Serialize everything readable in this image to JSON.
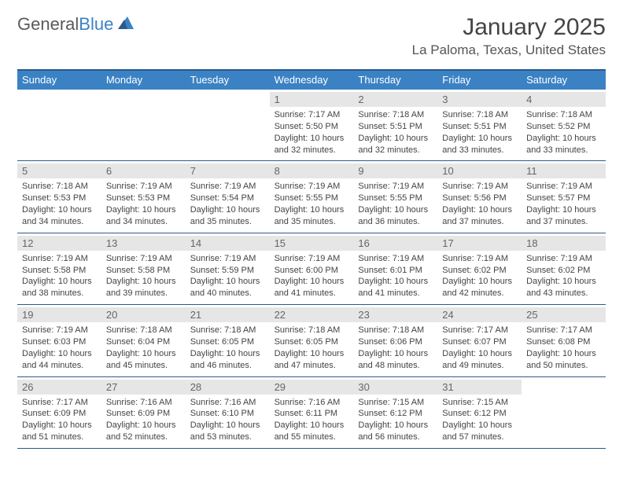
{
  "logo": {
    "text1": "General",
    "text2": "Blue"
  },
  "title": "January 2025",
  "location": "La Paloma, Texas, United States",
  "dayNames": [
    "Sunday",
    "Monday",
    "Tuesday",
    "Wednesday",
    "Thursday",
    "Friday",
    "Saturday"
  ],
  "colors": {
    "headerBg": "#3b82c4",
    "border": "#2c5a8a",
    "dayNumBg": "#e6e6e6",
    "text": "#444444"
  },
  "weeks": [
    [
      {},
      {},
      {},
      {
        "n": "1",
        "sr": "7:17 AM",
        "ss": "5:50 PM",
        "dl": "10 hours and 32 minutes."
      },
      {
        "n": "2",
        "sr": "7:18 AM",
        "ss": "5:51 PM",
        "dl": "10 hours and 32 minutes."
      },
      {
        "n": "3",
        "sr": "7:18 AM",
        "ss": "5:51 PM",
        "dl": "10 hours and 33 minutes."
      },
      {
        "n": "4",
        "sr": "7:18 AM",
        "ss": "5:52 PM",
        "dl": "10 hours and 33 minutes."
      }
    ],
    [
      {
        "n": "5",
        "sr": "7:18 AM",
        "ss": "5:53 PM",
        "dl": "10 hours and 34 minutes."
      },
      {
        "n": "6",
        "sr": "7:19 AM",
        "ss": "5:53 PM",
        "dl": "10 hours and 34 minutes."
      },
      {
        "n": "7",
        "sr": "7:19 AM",
        "ss": "5:54 PM",
        "dl": "10 hours and 35 minutes."
      },
      {
        "n": "8",
        "sr": "7:19 AM",
        "ss": "5:55 PM",
        "dl": "10 hours and 35 minutes."
      },
      {
        "n": "9",
        "sr": "7:19 AM",
        "ss": "5:55 PM",
        "dl": "10 hours and 36 minutes."
      },
      {
        "n": "10",
        "sr": "7:19 AM",
        "ss": "5:56 PM",
        "dl": "10 hours and 37 minutes."
      },
      {
        "n": "11",
        "sr": "7:19 AM",
        "ss": "5:57 PM",
        "dl": "10 hours and 37 minutes."
      }
    ],
    [
      {
        "n": "12",
        "sr": "7:19 AM",
        "ss": "5:58 PM",
        "dl": "10 hours and 38 minutes."
      },
      {
        "n": "13",
        "sr": "7:19 AM",
        "ss": "5:58 PM",
        "dl": "10 hours and 39 minutes."
      },
      {
        "n": "14",
        "sr": "7:19 AM",
        "ss": "5:59 PM",
        "dl": "10 hours and 40 minutes."
      },
      {
        "n": "15",
        "sr": "7:19 AM",
        "ss": "6:00 PM",
        "dl": "10 hours and 41 minutes."
      },
      {
        "n": "16",
        "sr": "7:19 AM",
        "ss": "6:01 PM",
        "dl": "10 hours and 41 minutes."
      },
      {
        "n": "17",
        "sr": "7:19 AM",
        "ss": "6:02 PM",
        "dl": "10 hours and 42 minutes."
      },
      {
        "n": "18",
        "sr": "7:19 AM",
        "ss": "6:02 PM",
        "dl": "10 hours and 43 minutes."
      }
    ],
    [
      {
        "n": "19",
        "sr": "7:19 AM",
        "ss": "6:03 PM",
        "dl": "10 hours and 44 minutes."
      },
      {
        "n": "20",
        "sr": "7:18 AM",
        "ss": "6:04 PM",
        "dl": "10 hours and 45 minutes."
      },
      {
        "n": "21",
        "sr": "7:18 AM",
        "ss": "6:05 PM",
        "dl": "10 hours and 46 minutes."
      },
      {
        "n": "22",
        "sr": "7:18 AM",
        "ss": "6:05 PM",
        "dl": "10 hours and 47 minutes."
      },
      {
        "n": "23",
        "sr": "7:18 AM",
        "ss": "6:06 PM",
        "dl": "10 hours and 48 minutes."
      },
      {
        "n": "24",
        "sr": "7:17 AM",
        "ss": "6:07 PM",
        "dl": "10 hours and 49 minutes."
      },
      {
        "n": "25",
        "sr": "7:17 AM",
        "ss": "6:08 PM",
        "dl": "10 hours and 50 minutes."
      }
    ],
    [
      {
        "n": "26",
        "sr": "7:17 AM",
        "ss": "6:09 PM",
        "dl": "10 hours and 51 minutes."
      },
      {
        "n": "27",
        "sr": "7:16 AM",
        "ss": "6:09 PM",
        "dl": "10 hours and 52 minutes."
      },
      {
        "n": "28",
        "sr": "7:16 AM",
        "ss": "6:10 PM",
        "dl": "10 hours and 53 minutes."
      },
      {
        "n": "29",
        "sr": "7:16 AM",
        "ss": "6:11 PM",
        "dl": "10 hours and 55 minutes."
      },
      {
        "n": "30",
        "sr": "7:15 AM",
        "ss": "6:12 PM",
        "dl": "10 hours and 56 minutes."
      },
      {
        "n": "31",
        "sr": "7:15 AM",
        "ss": "6:12 PM",
        "dl": "10 hours and 57 minutes."
      },
      {}
    ]
  ]
}
